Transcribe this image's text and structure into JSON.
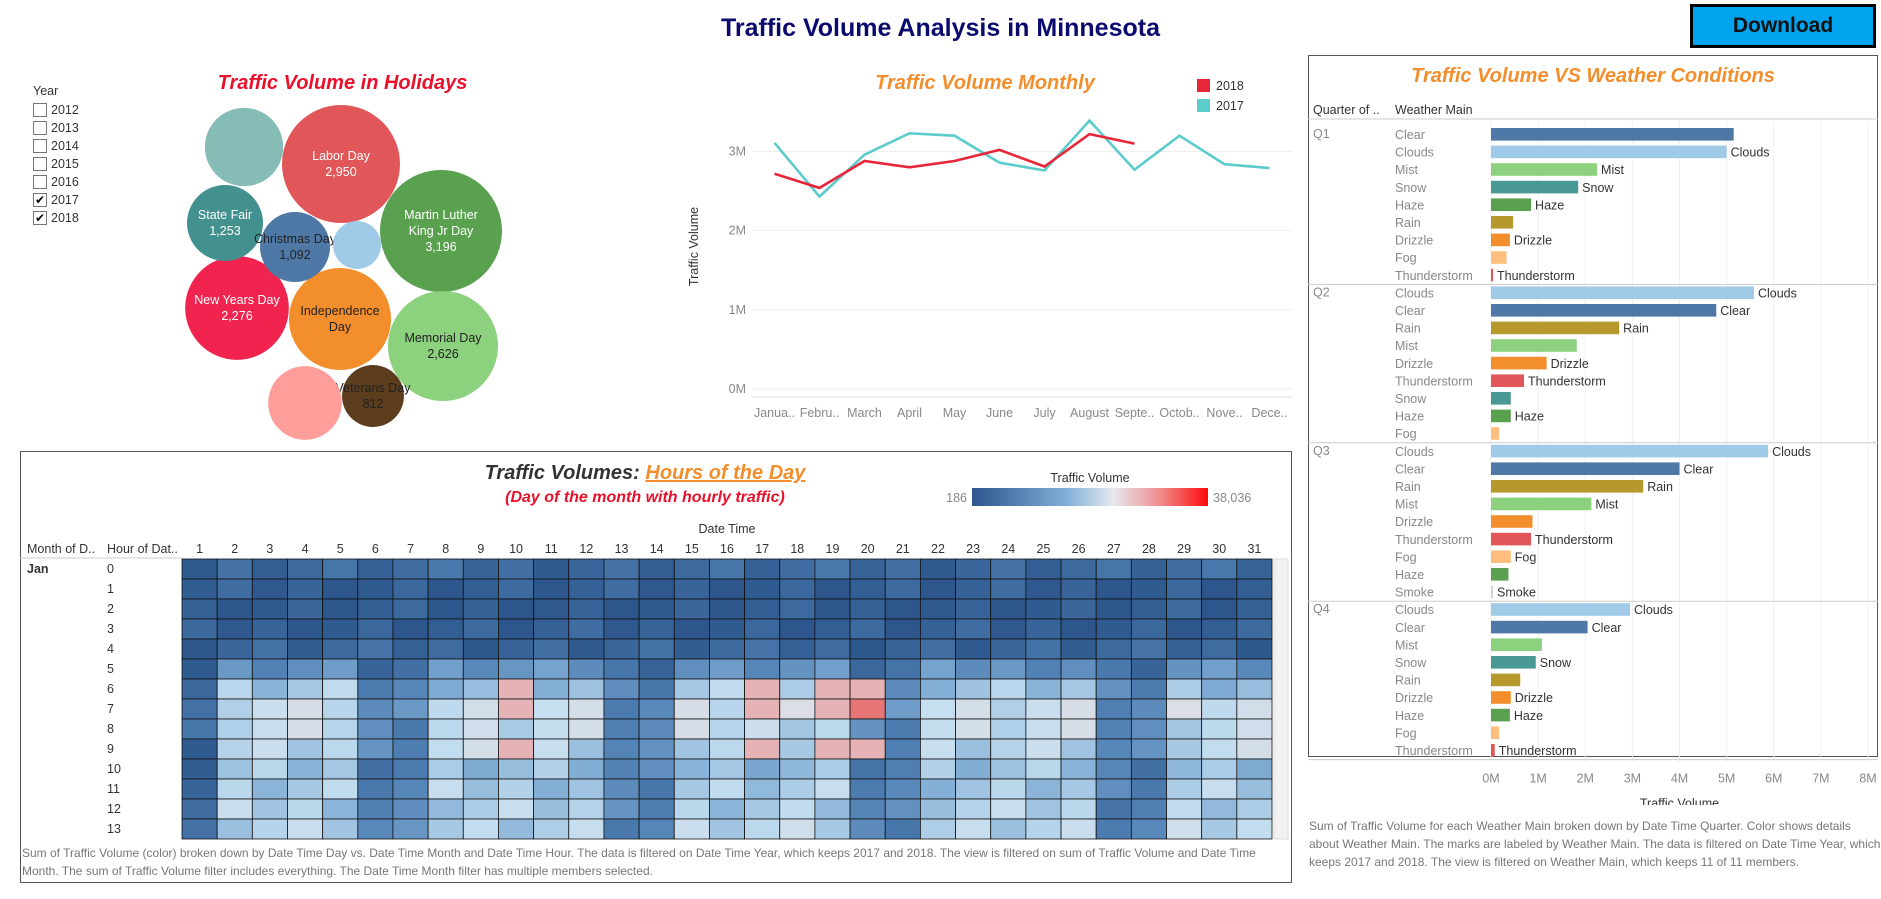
{
  "header": {
    "title": "Traffic Volume  Analysis in Minnesota",
    "download_label": "Download"
  },
  "year_filter": {
    "label": "Year",
    "items": [
      {
        "label": "2012",
        "checked": false
      },
      {
        "label": "2013",
        "checked": false
      },
      {
        "label": "2014",
        "checked": false
      },
      {
        "label": "2015",
        "checked": false
      },
      {
        "label": "2016",
        "checked": false
      },
      {
        "label": "2017",
        "checked": true
      },
      {
        "label": "2018",
        "checked": true
      }
    ]
  },
  "colors": {
    "accent_orange": "#f28e2b",
    "accent_red": "#e8102a",
    "title_navy": "#0b0b6e",
    "download_bg": "#00a3ee"
  },
  "chart_data": [
    {
      "type": "bubble",
      "title": "Traffic Volume in Holidays",
      "items": [
        {
          "name": "Labor Day",
          "value": 2950,
          "label_value": "2,950",
          "color": "#e15759",
          "text": "light"
        },
        {
          "name": "Martin Luther King Jr Day",
          "label_lines": [
            "Martin Luther",
            "King Jr Day"
          ],
          "value": 3196,
          "label_value": "3,196",
          "color": "#59a14f",
          "text": "light"
        },
        {
          "name": "Memorial Day",
          "value": 2626,
          "label_value": "2,626",
          "color": "#8cd17d",
          "text": "dark"
        },
        {
          "name": "Independence Day",
          "label_lines": [
            "Independence",
            "Day"
          ],
          "value": 2600,
          "label_value": "",
          "color": "#f28e2b",
          "text": "dark"
        },
        {
          "name": "New Years Day",
          "value": 2276,
          "label_value": "2,276",
          "color": "#f0244f",
          "text": "light"
        },
        {
          "name": "State Fair",
          "value": 1253,
          "label_value": "1,253",
          "color": "#43918e",
          "text": "light"
        },
        {
          "name": "Christmas Day",
          "value": 1092,
          "label_value": "1,092",
          "color": "#4e79a7",
          "text": "dark"
        },
        {
          "name": "Veterans Day",
          "value": 812,
          "label_value": "812",
          "color": "#5c3d1e",
          "text": "dark"
        },
        {
          "name": "",
          "value": 1300,
          "label_value": "",
          "color": "#86bcb6",
          "text": "none"
        },
        {
          "name": "",
          "value": 1150,
          "label_value": "",
          "color": "#ff9d9a",
          "text": "none"
        },
        {
          "name": "",
          "value": 500,
          "label_value": "",
          "color": "#a0cbe8",
          "text": "none"
        }
      ]
    },
    {
      "type": "line",
      "title": "Traffic Volume Monthly",
      "ylabel": "Traffic Volume",
      "categories": [
        "Janua..",
        "Febru..",
        "March",
        "April",
        "May",
        "June",
        "July",
        "August",
        "Septe..",
        "Octob..",
        "Nove..",
        "Dece.."
      ],
      "y_ticks": [
        "0M",
        "1M",
        "2M",
        "3M"
      ],
      "ylim": [
        0,
        3600000
      ],
      "legend_position": "top-right",
      "series": [
        {
          "name": "2018",
          "color": "#e8263a",
          "values": [
            2720000,
            2540000,
            2880000,
            2800000,
            2880000,
            3020000,
            2810000,
            3220000,
            3100000,
            null,
            null,
            null
          ]
        },
        {
          "name": "2017",
          "color": "#5bcbcb",
          "values": [
            3110000,
            2430000,
            2960000,
            3230000,
            3200000,
            2860000,
            2760000,
            3390000,
            2770000,
            3200000,
            2840000,
            2790000
          ]
        }
      ]
    },
    {
      "type": "heatmap",
      "title_prefix": "Traffic Volumes: ",
      "title_link": "Hours of the Day",
      "subtitle": "(Day of the month with hourly traffic)",
      "x_header": "Date Time",
      "row_header_1": "Month of D..",
      "row_header_2": "Hour of Dat..",
      "month": "Jan",
      "legend_title": "Traffic Volume",
      "legend_min": "186",
      "legend_max": "38,036",
      "days": [
        "1",
        "2",
        "3",
        "4",
        "5",
        "6",
        "7",
        "8",
        "9",
        "10",
        "11",
        "12",
        "13",
        "14",
        "15",
        "16",
        "17",
        "18",
        "19",
        "20",
        "21",
        "22",
        "23",
        "24",
        "25",
        "26",
        "27",
        "28",
        "29",
        "30",
        "31"
      ],
      "hours": [
        "0",
        "1",
        "2",
        "3",
        "4",
        "5",
        "6",
        "7",
        "8",
        "9",
        "10",
        "11",
        "12",
        "13"
      ],
      "weekend_days": [
        1,
        6,
        7,
        13,
        14,
        20,
        21,
        27,
        28
      ]
    },
    {
      "type": "bar",
      "orientation": "horizontal",
      "title": "Traffic Volume VS Weather Conditions",
      "col_header_1": "Quarter of ..",
      "col_header_2": "Weather Main",
      "xlabel": "Traffic Volume",
      "x_ticks": [
        "0M",
        "1M",
        "2M",
        "3M",
        "4M",
        "5M",
        "6M",
        "7M",
        "8M"
      ],
      "xlim": [
        0,
        8000000
      ],
      "quarters": [
        {
          "name": "Q1",
          "rows": [
            {
              "w": "Clear",
              "v": 5150000,
              "label": ""
            },
            {
              "w": "Clouds",
              "v": 5000000,
              "label": "Clouds"
            },
            {
              "w": "Mist",
              "v": 2250000,
              "label": "Mist"
            },
            {
              "w": "Snow",
              "v": 1850000,
              "label": "Snow"
            },
            {
              "w": "Haze",
              "v": 850000,
              "label": "Haze"
            },
            {
              "w": "Rain",
              "v": 470000,
              "label": ""
            },
            {
              "w": "Drizzle",
              "v": 400000,
              "label": "Drizzle"
            },
            {
              "w": "Fog",
              "v": 330000,
              "label": ""
            },
            {
              "w": "Thunderstorm",
              "v": 30000,
              "label": "Thunderstorm"
            }
          ]
        },
        {
          "name": "Q2",
          "rows": [
            {
              "w": "Clouds",
              "v": 5580000,
              "label": "Clouds"
            },
            {
              "w": "Clear",
              "v": 4780000,
              "label": "Clear"
            },
            {
              "w": "Rain",
              "v": 2720000,
              "label": "Rain"
            },
            {
              "w": "Mist",
              "v": 1820000,
              "label": ""
            },
            {
              "w": "Drizzle",
              "v": 1180000,
              "label": "Drizzle"
            },
            {
              "w": "Thunderstorm",
              "v": 700000,
              "label": "Thunderstorm"
            },
            {
              "w": "Snow",
              "v": 420000,
              "label": ""
            },
            {
              "w": "Haze",
              "v": 420000,
              "label": "Haze"
            },
            {
              "w": "Fog",
              "v": 170000,
              "label": ""
            }
          ]
        },
        {
          "name": "Q3",
          "rows": [
            {
              "w": "Clouds",
              "v": 5880000,
              "label": "Clouds"
            },
            {
              "w": "Clear",
              "v": 4000000,
              "label": "Clear"
            },
            {
              "w": "Rain",
              "v": 3230000,
              "label": "Rain"
            },
            {
              "w": "Mist",
              "v": 2130000,
              "label": "Mist"
            },
            {
              "w": "Drizzle",
              "v": 880000,
              "label": ""
            },
            {
              "w": "Thunderstorm",
              "v": 850000,
              "label": "Thunderstorm"
            },
            {
              "w": "Fog",
              "v": 420000,
              "label": "Fog"
            },
            {
              "w": "Haze",
              "v": 370000,
              "label": ""
            },
            {
              "w": "Smoke",
              "v": 15000,
              "label": "Smoke"
            }
          ]
        },
        {
          "name": "Q4",
          "rows": [
            {
              "w": "Clouds",
              "v": 2950000,
              "label": "Clouds"
            },
            {
              "w": "Clear",
              "v": 2050000,
              "label": "Clear"
            },
            {
              "w": "Mist",
              "v": 1080000,
              "label": ""
            },
            {
              "w": "Snow",
              "v": 950000,
              "label": "Snow"
            },
            {
              "w": "Rain",
              "v": 620000,
              "label": ""
            },
            {
              "w": "Drizzle",
              "v": 420000,
              "label": "Drizzle"
            },
            {
              "w": "Haze",
              "v": 400000,
              "label": "Haze"
            },
            {
              "w": "Fog",
              "v": 170000,
              "label": ""
            },
            {
              "w": "Thunderstorm",
              "v": 80000,
              "label": "Thunderstorm"
            }
          ]
        }
      ],
      "colors": {
        "Clear": "#4e79a7",
        "Clouds": "#a0cbe8",
        "Mist": "#8cd17d",
        "Snow": "#499894",
        "Haze": "#59a14f",
        "Rain": "#b6992d",
        "Drizzle": "#f28e2b",
        "Fog": "#ffbe7d",
        "Thunderstorm": "#e15759",
        "Smoke": "#d4d4d4"
      }
    }
  ],
  "footnotes": {
    "heatmap": "Sum of Traffic Volume (color) broken down by Date Time Day vs. Date Time Month and Date Time Hour. The data is filtered on Date Time Year, which keeps 2017 and 2018. The view is filtered on sum of Traffic Volume and Date Time Month. The sum of Traffic Volume filter includes everything. The Date Time Month filter has multiple members selected.",
    "weather": "Sum of Traffic Volume for each Weather Main broken down by Date Time Quarter.  Color shows details about Weather Main.  The marks are labeled by Weather Main.  The data is filtered on Date Time Year, which keeps 2017 and 2018.  The view is filtered on Weather Main, which keeps 11 of 11 members."
  }
}
